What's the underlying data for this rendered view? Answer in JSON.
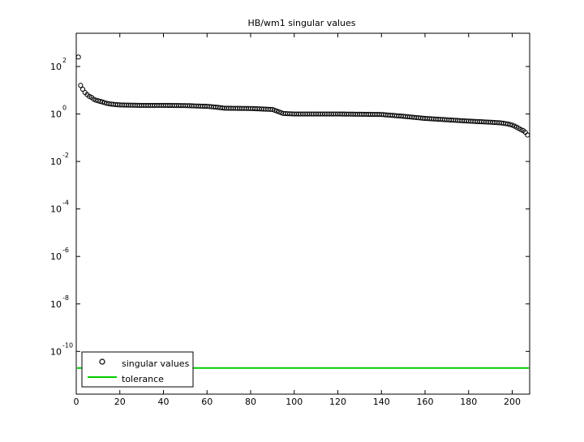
{
  "chart_data": {
    "type": "scatter",
    "title": "HB/wm1 singular values",
    "xlabel": "",
    "ylabel": "",
    "xlim": [
      0,
      208
    ],
    "ylog": true,
    "ylim_log10": [
      -11.8,
      3.4
    ],
    "xticks": [
      0,
      20,
      40,
      60,
      80,
      100,
      120,
      140,
      160,
      180,
      200
    ],
    "yticks_log10": [
      -10,
      -8,
      -6,
      -4,
      -2,
      0,
      2
    ],
    "grid": false,
    "legend_position": "bottom-left",
    "series": [
      {
        "name": "singular values",
        "marker": "circle",
        "color": "#000000",
        "x_range": [
          1,
          207
        ],
        "profile_x": [
          1,
          2,
          3,
          4,
          5,
          6,
          7,
          8,
          9,
          10,
          12,
          14,
          16,
          18,
          20,
          25,
          30,
          40,
          50,
          60,
          65,
          68,
          80,
          90,
          95,
          100,
          120,
          140,
          150,
          160,
          170,
          180,
          190,
          195,
          198,
          200,
          202,
          204,
          205,
          206,
          207
        ],
        "profile_y": [
          250,
          16,
          11,
          8,
          6.5,
          5.5,
          5,
          4.2,
          3.8,
          3.6,
          3.2,
          2.8,
          2.6,
          2.5,
          2.4,
          2.35,
          2.3,
          2.3,
          2.25,
          2.1,
          1.9,
          1.75,
          1.7,
          1.55,
          1.05,
          1.0,
          1.0,
          0.95,
          0.8,
          0.65,
          0.57,
          0.5,
          0.45,
          0.42,
          0.38,
          0.34,
          0.28,
          0.22,
          0.2,
          0.17,
          0.13
        ]
      },
      {
        "name": "tolerance",
        "type": "line",
        "color": "#00cc00",
        "y": 2e-11
      }
    ],
    "legend": [
      "singular values",
      "tolerance"
    ]
  }
}
